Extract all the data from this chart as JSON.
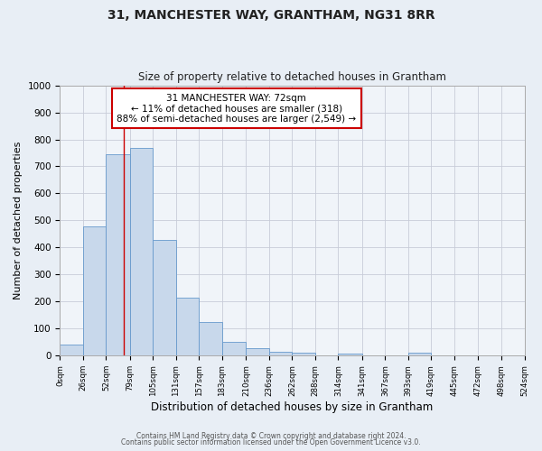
{
  "title": "31, MANCHESTER WAY, GRANTHAM, NG31 8RR",
  "subtitle": "Size of property relative to detached houses in Grantham",
  "xlabel": "Distribution of detached houses by size in Grantham",
  "ylabel": "Number of detached properties",
  "bar_color": "#c8d8eb",
  "bar_edge_color": "#6699cc",
  "background_color": "#e8eef5",
  "plot_bg_color": "#f0f4f9",
  "grid_color": "#c8ccd8",
  "bin_edges": [
    0,
    26,
    52,
    79,
    105,
    131,
    157,
    183,
    210,
    236,
    262,
    288,
    314,
    341,
    367,
    393,
    419,
    445,
    472,
    498,
    524
  ],
  "bar_heights": [
    42,
    478,
    745,
    770,
    428,
    215,
    125,
    52,
    27,
    15,
    10,
    0,
    8,
    0,
    0,
    10,
    0,
    0,
    0,
    0
  ],
  "tick_labels": [
    "0sqm",
    "26sqm",
    "52sqm",
    "79sqm",
    "105sqm",
    "131sqm",
    "157sqm",
    "183sqm",
    "210sqm",
    "236sqm",
    "262sqm",
    "288sqm",
    "314sqm",
    "341sqm",
    "367sqm",
    "393sqm",
    "419sqm",
    "445sqm",
    "472sqm",
    "498sqm",
    "524sqm"
  ],
  "ylim": [
    0,
    1000
  ],
  "yticks": [
    0,
    100,
    200,
    300,
    400,
    500,
    600,
    700,
    800,
    900,
    1000
  ],
  "property_line_x": 72,
  "annotation_title": "31 MANCHESTER WAY: 72sqm",
  "annotation_line1": "← 11% of detached houses are smaller (318)",
  "annotation_line2": "88% of semi-detached houses are larger (2,549) →",
  "annotation_box_color": "#ffffff",
  "annotation_box_edge": "#cc0000",
  "vline_color": "#cc0000",
  "footer1": "Contains HM Land Registry data © Crown copyright and database right 2024.",
  "footer2": "Contains public sector information licensed under the Open Government Licence v3.0."
}
